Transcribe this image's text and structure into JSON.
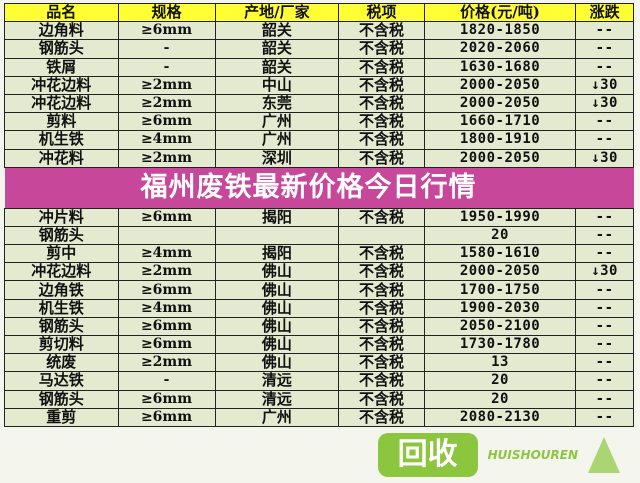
{
  "headers": [
    "品名",
    "规格",
    "产地/厂家",
    "税项",
    "价格(元/吨)",
    "涨跌"
  ],
  "rows": [
    [
      "边角料",
      "≥6mm",
      "韶关",
      "不含税",
      "1820-1850",
      "--"
    ],
    [
      "钢筋头",
      "-",
      "韶关",
      "不含税",
      "2020-2060",
      "--"
    ],
    [
      "铁屑",
      "-",
      "韶关",
      "不含税",
      "1630-1680",
      "--"
    ],
    [
      "冲花边料",
      "≥2mm",
      "中山",
      "不含税",
      "2000-2050",
      "↓30"
    ],
    [
      "冲花边料",
      "≥2mm",
      "东莞",
      "不含税",
      "2000-2050",
      "↓30"
    ],
    [
      "剪料",
      "≥6mm",
      "广州",
      "不含税",
      "1660-1710",
      "--"
    ],
    [
      "机生铁",
      "≥4mm",
      "广州",
      "不含税",
      "1800-1910",
      "--"
    ],
    [
      "冲花料",
      "≥2mm",
      "深圳",
      "不含税",
      "2000-2050",
      "↓30"
    ],
    [
      "冲片料",
      "≥6mm",
      "揭阳",
      "不含税",
      "1950-1990",
      "--"
    ],
    [
      "钢筋头",
      "",
      "",
      "",
      "20",
      "--"
    ],
    [
      "剪中",
      "≥4mm",
      "揭阳",
      "不含税",
      "1580-1610",
      "--"
    ],
    [
      "冲花边料",
      "≥2mm",
      "佛山",
      "不含税",
      "2000-2050",
      "↓30"
    ],
    [
      "边角铁",
      "≥6mm",
      "佛山",
      "不含税",
      "1700-1750",
      "--"
    ],
    [
      "机生铁",
      "≥4mm",
      "佛山",
      "不含税",
      "1900-2030",
      "--"
    ],
    [
      "钢筋头",
      "≥6mm",
      "佛山",
      "不含税",
      "2050-2100",
      "--"
    ],
    [
      "剪切料",
      "≥6mm",
      "佛山",
      "不含税",
      "1730-1780",
      "--"
    ],
    [
      "统废",
      "≥2mm",
      "佛山",
      "不含税",
      "13",
      "--"
    ],
    [
      "马达铁",
      "-",
      "清远",
      "不含税",
      "20",
      "--"
    ],
    [
      "钢筋头",
      "≥6mm",
      "清远",
      "不含税",
      "20",
      "--"
    ],
    [
      "重剪",
      "≥6mm",
      "广州",
      "不含税",
      "2080-2130",
      "--"
    ]
  ],
  "banner": {
    "title": "福州废铁最新价格今日行情"
  },
  "watermark": {
    "logo": "回收",
    "sub": "HUISHOUREN",
    "color": "#8cc63f"
  },
  "colors": {
    "header_bg": "#ffff33",
    "body_bg": "#e3ead0",
    "banner": "#be288c"
  }
}
